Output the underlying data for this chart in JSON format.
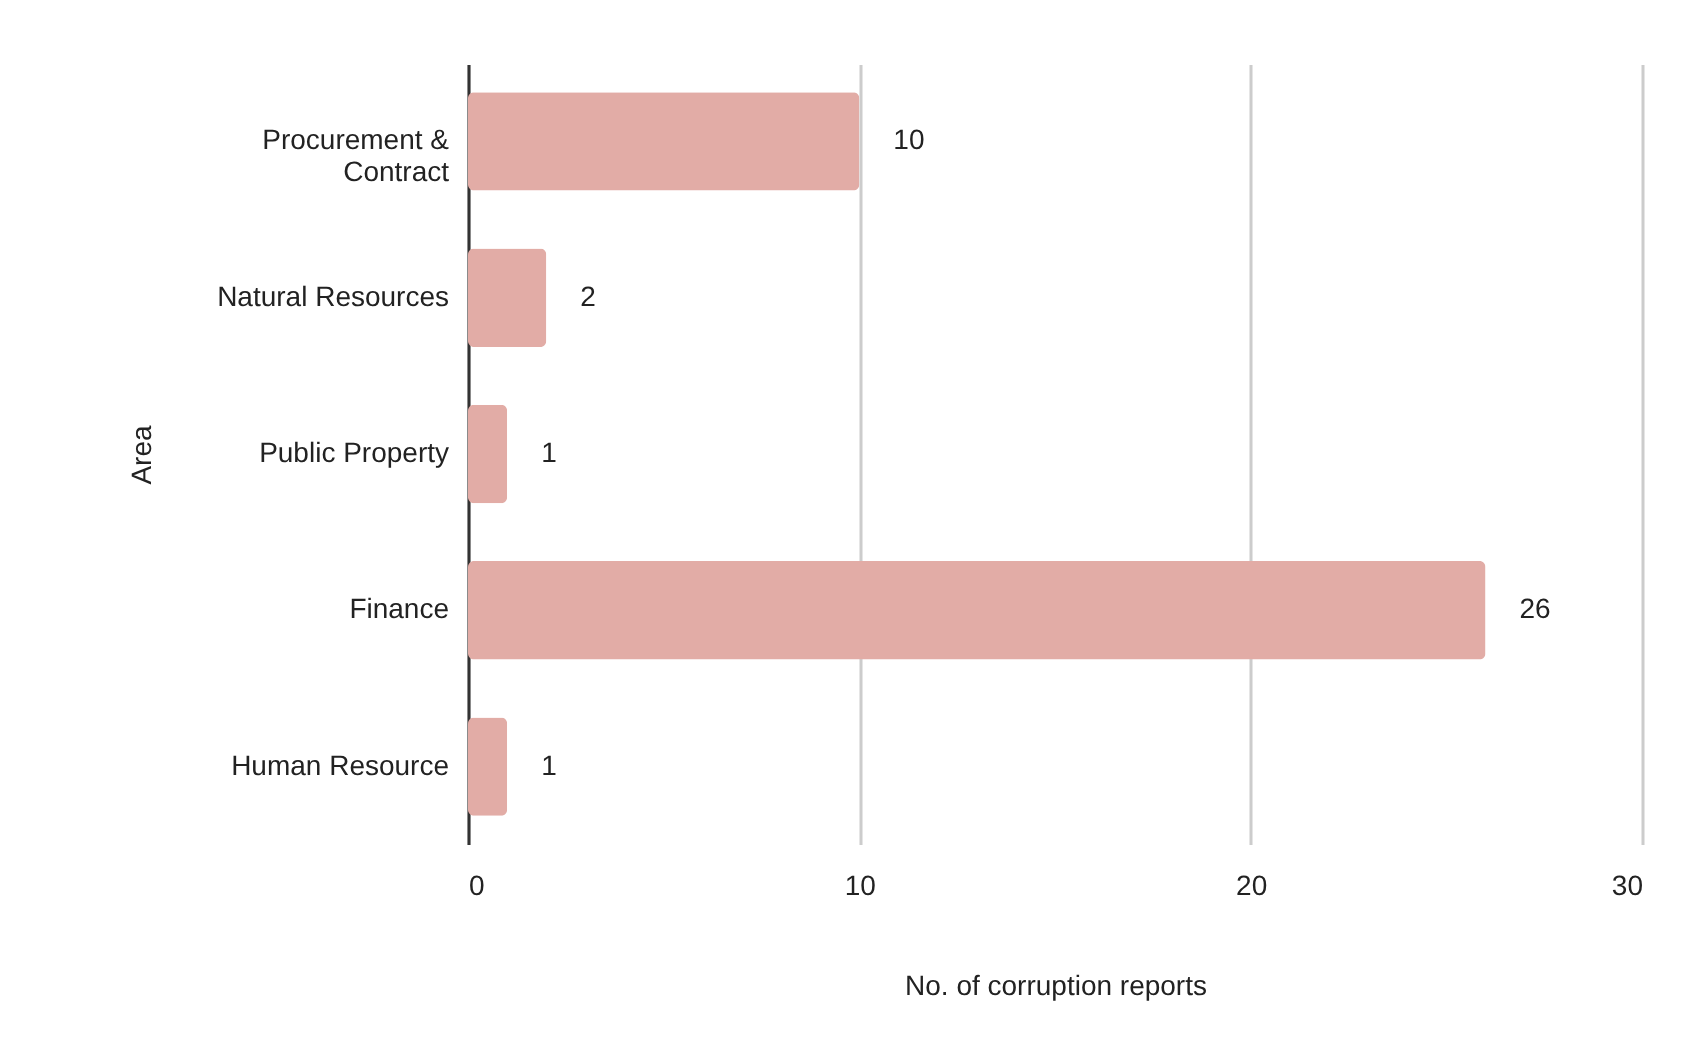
{
  "chart_data": {
    "type": "bar",
    "orientation": "horizontal",
    "xlabel": "No. of corruption reports",
    "ylabel": "Area",
    "categories": [
      "Procurement & Contract",
      "Natural Resources",
      "Public Property",
      "Finance",
      "Human Resource"
    ],
    "values": [
      10,
      2,
      1,
      26,
      1
    ],
    "color": "#e2aca6",
    "data_labels": true,
    "xlim": [
      0,
      30
    ],
    "xticks": [
      0,
      10,
      20,
      30
    ],
    "grid": "x"
  }
}
